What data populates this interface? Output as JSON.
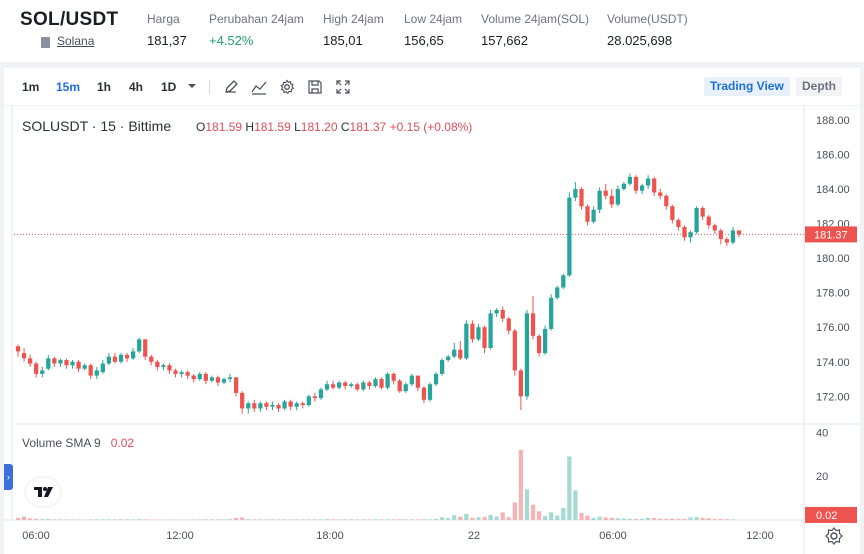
{
  "header": {
    "pair": "SOL/USDT",
    "coin_name": "Solana",
    "stats": [
      {
        "label": "Harga",
        "value": "181,37",
        "trend": "neutral"
      },
      {
        "label": "Perubahan 24jam",
        "value": "+4.52%",
        "trend": "up"
      },
      {
        "label": "High 24jam",
        "value": "185,01",
        "trend": "neutral"
      },
      {
        "label": "Low 24jam",
        "value": "156,65",
        "trend": "neutral"
      },
      {
        "label": "Volume 24jam(SOL)",
        "value": "157,662",
        "trend": "neutral"
      },
      {
        "label": "Volume(USDT)",
        "value": "28.025,698",
        "trend": "neutral"
      }
    ]
  },
  "toolbar": {
    "timeframes": [
      "1m",
      "15m",
      "1h",
      "4h",
      "1D"
    ],
    "active_timeframe": "15m",
    "tools": [
      "pencil-icon",
      "indicator-icon",
      "gear-icon",
      "save-icon",
      "fullscreen-icon"
    ],
    "tabs": {
      "trading_view": "Trading View",
      "depth": "Depth"
    }
  },
  "legend": {
    "symbol": "SOLUSDT · 15 · Bittime",
    "o_label": "O",
    "o": "181.59",
    "h_label": "H",
    "h": "181.59",
    "l_label": "L",
    "l": "181.20",
    "c_label": "C",
    "c": "181.37",
    "change": "+0.15 (+0.08%)"
  },
  "volume_legend": {
    "label": "Volume SMA 9",
    "value": "0.02"
  },
  "colors": {
    "up": "#26a69a",
    "down": "#ef5350",
    "accent": "#1e6fd9",
    "price_line": "#ef5350"
  },
  "chart_data": {
    "type": "candlestick",
    "price_axis": {
      "ticks": [
        "188.00",
        "186.00",
        "184.00",
        "182.00",
        "180.00",
        "178.00",
        "176.00",
        "174.00",
        "172.00"
      ],
      "range": [
        170.4,
        188.8
      ]
    },
    "time_axis": {
      "ticks": [
        "06:00",
        "12:00",
        "18:00",
        "22",
        "06:00",
        "12:00"
      ]
    },
    "last_price_label": "181.37",
    "last_price": 181.37,
    "volume_axis": {
      "ticks": [
        "40",
        "20"
      ],
      "range": [
        0,
        42
      ]
    },
    "volume_label": "0.02",
    "candles": [
      [
        174.9,
        174.6,
        175.0,
        174.3
      ],
      [
        174.5,
        174.2,
        174.8,
        174.0
      ],
      [
        174.2,
        173.9,
        174.4,
        173.7
      ],
      [
        173.9,
        173.3,
        174.0,
        173.1
      ],
      [
        173.3,
        173.5,
        173.7,
        173.1
      ],
      [
        173.6,
        174.2,
        174.4,
        173.5
      ],
      [
        174.2,
        173.9,
        174.3,
        173.7
      ],
      [
        173.9,
        174.1,
        174.2,
        173.7
      ],
      [
        174.1,
        173.8,
        174.2,
        173.6
      ],
      [
        173.8,
        174.0,
        174.1,
        173.6
      ],
      [
        174.0,
        173.6,
        174.1,
        173.4
      ],
      [
        173.6,
        173.8,
        173.9,
        173.5
      ],
      [
        173.8,
        173.2,
        173.9,
        173.0
      ],
      [
        173.2,
        173.5,
        173.7,
        173.0
      ],
      [
        173.4,
        173.9,
        174.1,
        173.3
      ],
      [
        173.9,
        174.3,
        174.5,
        173.8
      ],
      [
        174.3,
        174.0,
        174.5,
        173.9
      ],
      [
        174.0,
        174.4,
        174.5,
        173.9
      ],
      [
        174.4,
        174.2,
        174.5,
        174.0
      ],
      [
        174.2,
        174.6,
        174.8,
        174.1
      ],
      [
        174.6,
        175.3,
        175.4,
        174.5
      ],
      [
        175.3,
        174.3,
        175.3,
        174.1
      ],
      [
        174.3,
        174.0,
        174.4,
        173.8
      ],
      [
        174.0,
        173.7,
        174.1,
        173.5
      ],
      [
        173.7,
        173.8,
        173.9,
        173.5
      ],
      [
        173.8,
        173.5,
        173.9,
        173.3
      ],
      [
        173.5,
        173.3,
        173.6,
        173.1
      ],
      [
        173.3,
        173.4,
        173.5,
        173.1
      ],
      [
        173.4,
        173.2,
        173.5,
        173.0
      ],
      [
        173.2,
        173.0,
        173.3,
        172.8
      ],
      [
        173.0,
        173.3,
        173.4,
        172.9
      ],
      [
        173.3,
        172.9,
        173.4,
        172.7
      ],
      [
        172.9,
        173.1,
        173.2,
        172.8
      ],
      [
        173.1,
        172.8,
        173.2,
        172.6
      ],
      [
        172.8,
        173.0,
        173.1,
        172.7
      ],
      [
        173.0,
        173.1,
        173.3,
        172.8
      ],
      [
        173.1,
        172.2,
        173.1,
        172.0
      ],
      [
        172.2,
        171.3,
        172.3,
        171.0
      ],
      [
        171.3,
        171.6,
        171.7,
        171.0
      ],
      [
        171.6,
        171.3,
        171.8,
        171.1
      ],
      [
        171.3,
        171.6,
        171.7,
        171.1
      ],
      [
        171.6,
        171.4,
        171.7,
        171.2
      ],
      [
        171.4,
        171.5,
        171.7,
        171.2
      ],
      [
        171.5,
        171.3,
        171.6,
        171.1
      ],
      [
        171.3,
        171.7,
        171.8,
        171.2
      ],
      [
        171.7,
        171.4,
        171.8,
        171.2
      ],
      [
        171.4,
        171.6,
        171.7,
        171.2
      ],
      [
        171.6,
        171.5,
        171.7,
        171.3
      ],
      [
        171.5,
        172.0,
        172.1,
        171.4
      ],
      [
        172.0,
        171.9,
        172.2,
        171.7
      ],
      [
        171.9,
        172.4,
        172.5,
        171.8
      ],
      [
        172.4,
        172.7,
        172.9,
        172.3
      ],
      [
        172.7,
        172.5,
        172.9,
        172.4
      ],
      [
        172.5,
        172.8,
        172.9,
        172.4
      ],
      [
        172.8,
        172.6,
        172.9,
        172.4
      ],
      [
        172.6,
        172.7,
        172.8,
        172.5
      ],
      [
        172.7,
        172.4,
        172.8,
        172.3
      ],
      [
        172.4,
        172.8,
        172.9,
        172.3
      ],
      [
        172.8,
        172.6,
        172.9,
        172.4
      ],
      [
        172.6,
        173.0,
        173.1,
        172.5
      ],
      [
        173.0,
        172.5,
        173.1,
        172.4
      ],
      [
        172.5,
        173.3,
        173.4,
        172.4
      ],
      [
        173.3,
        172.9,
        173.4,
        172.7
      ],
      [
        172.9,
        172.3,
        173.0,
        172.2
      ],
      [
        172.3,
        172.7,
        172.8,
        172.2
      ],
      [
        172.7,
        173.2,
        173.3,
        172.6
      ],
      [
        173.2,
        172.5,
        173.2,
        172.3
      ],
      [
        172.5,
        171.8,
        172.6,
        171.6
      ],
      [
        171.8,
        172.7,
        172.8,
        171.7
      ],
      [
        172.7,
        173.3,
        173.4,
        172.6
      ],
      [
        173.3,
        174.1,
        174.2,
        173.2
      ],
      [
        174.1,
        174.3,
        174.4,
        174.0
      ],
      [
        174.3,
        174.7,
        175.1,
        174.2
      ],
      [
        174.7,
        174.2,
        175.2,
        174.1
      ],
      [
        174.2,
        176.2,
        176.4,
        174.1
      ],
      [
        176.2,
        175.3,
        176.4,
        175.1
      ],
      [
        175.3,
        176.0,
        176.2,
        175.2
      ],
      [
        176.0,
        174.8,
        176.1,
        174.5
      ],
      [
        174.8,
        176.8,
        177.0,
        174.7
      ],
      [
        176.8,
        177.0,
        177.1,
        176.6
      ],
      [
        177.0,
        176.5,
        177.2,
        176.3
      ],
      [
        176.5,
        175.8,
        176.6,
        175.6
      ],
      [
        175.8,
        173.5,
        175.9,
        173.2
      ],
      [
        173.5,
        172.0,
        173.6,
        171.2
      ],
      [
        172.0,
        176.8,
        177.0,
        171.8
      ],
      [
        176.8,
        175.5,
        177.8,
        175.3
      ],
      [
        175.5,
        174.5,
        175.6,
        174.3
      ],
      [
        174.5,
        175.9,
        176.1,
        174.4
      ],
      [
        175.9,
        177.7,
        177.9,
        175.8
      ],
      [
        177.7,
        178.3,
        178.4,
        177.6
      ],
      [
        178.3,
        179.0,
        179.1,
        178.2
      ],
      [
        179.0,
        183.5,
        183.8,
        178.9
      ],
      [
        183.5,
        184.0,
        184.4,
        183.3
      ],
      [
        184.0,
        183.0,
        184.1,
        182.8
      ],
      [
        183.0,
        182.1,
        183.1,
        181.9
      ],
      [
        182.1,
        182.8,
        183.0,
        182.0
      ],
      [
        182.8,
        183.9,
        184.1,
        182.6
      ],
      [
        183.9,
        183.6,
        184.3,
        183.4
      ],
      [
        183.6,
        183.1,
        184.0,
        182.9
      ],
      [
        183.1,
        184.0,
        184.2,
        183.0
      ],
      [
        184.0,
        184.3,
        184.4,
        183.9
      ],
      [
        184.3,
        184.7,
        184.9,
        184.2
      ],
      [
        184.7,
        183.9,
        184.8,
        183.7
      ],
      [
        183.9,
        184.2,
        184.3,
        183.7
      ],
      [
        184.2,
        184.6,
        184.8,
        184.0
      ],
      [
        184.6,
        183.8,
        184.7,
        183.6
      ],
      [
        183.8,
        183.6,
        184.0,
        183.4
      ],
      [
        183.6,
        183.0,
        183.7,
        182.8
      ],
      [
        183.0,
        182.2,
        183.1,
        182.0
      ],
      [
        182.2,
        181.8,
        182.3,
        181.6
      ],
      [
        181.8,
        181.2,
        181.9,
        181.0
      ],
      [
        181.2,
        181.5,
        181.6,
        180.9
      ],
      [
        181.5,
        182.9,
        183.0,
        181.4
      ],
      [
        182.9,
        182.4,
        183.0,
        182.2
      ],
      [
        182.4,
        181.9,
        182.5,
        181.7
      ],
      [
        181.9,
        181.6,
        182.0,
        181.4
      ],
      [
        181.6,
        181.1,
        181.7,
        180.8
      ],
      [
        181.1,
        180.9,
        181.2,
        180.7
      ],
      [
        180.9,
        181.6,
        181.8,
        180.8
      ],
      [
        181.6,
        181.37,
        181.6,
        181.2
      ]
    ],
    "volumes": [
      1,
      1.5,
      0.8,
      0.6,
      0.4,
      0.5,
      0.3,
      0.3,
      0.3,
      0.3,
      0.2,
      0.2,
      0.3,
      0.3,
      0.3,
      0.3,
      0.3,
      0.3,
      0.3,
      0.3,
      0.4,
      0.3,
      0.2,
      0.2,
      0.2,
      0.2,
      0.2,
      0.2,
      0.2,
      0.2,
      0.3,
      0.3,
      0.3,
      0.3,
      0.3,
      0.4,
      0.9,
      1.2,
      0.4,
      0.3,
      0.3,
      0.3,
      0.3,
      0.3,
      0.3,
      0.3,
      0.3,
      0.3,
      0.3,
      0.3,
      0.3,
      0.4,
      0.3,
      0.3,
      0.3,
      0.3,
      0.3,
      0.3,
      0.3,
      0.3,
      0.3,
      0.3,
      0.3,
      0.3,
      0.3,
      0.3,
      0.3,
      0.3,
      0.3,
      0.5,
      1.2,
      0.8,
      2.2,
      1.5,
      2.8,
      1.0,
      1.2,
      1.5,
      2.4,
      1.6,
      3.5,
      1.3,
      8,
      32,
      14,
      7,
      4,
      1.8,
      3.5,
      2.0,
      5.5,
      29,
      13.5,
      3.2,
      2.0,
      1.0,
      1.5,
      1.2,
      1.0,
      0.8,
      0.7,
      0.6,
      0.5,
      0.6,
      1.0,
      0.9,
      0.6,
      0.5,
      0.6,
      0.5,
      0.5,
      1.2,
      1.4,
      1.0,
      0.8,
      0.5,
      0.5,
      0.4,
      0.3
    ]
  }
}
